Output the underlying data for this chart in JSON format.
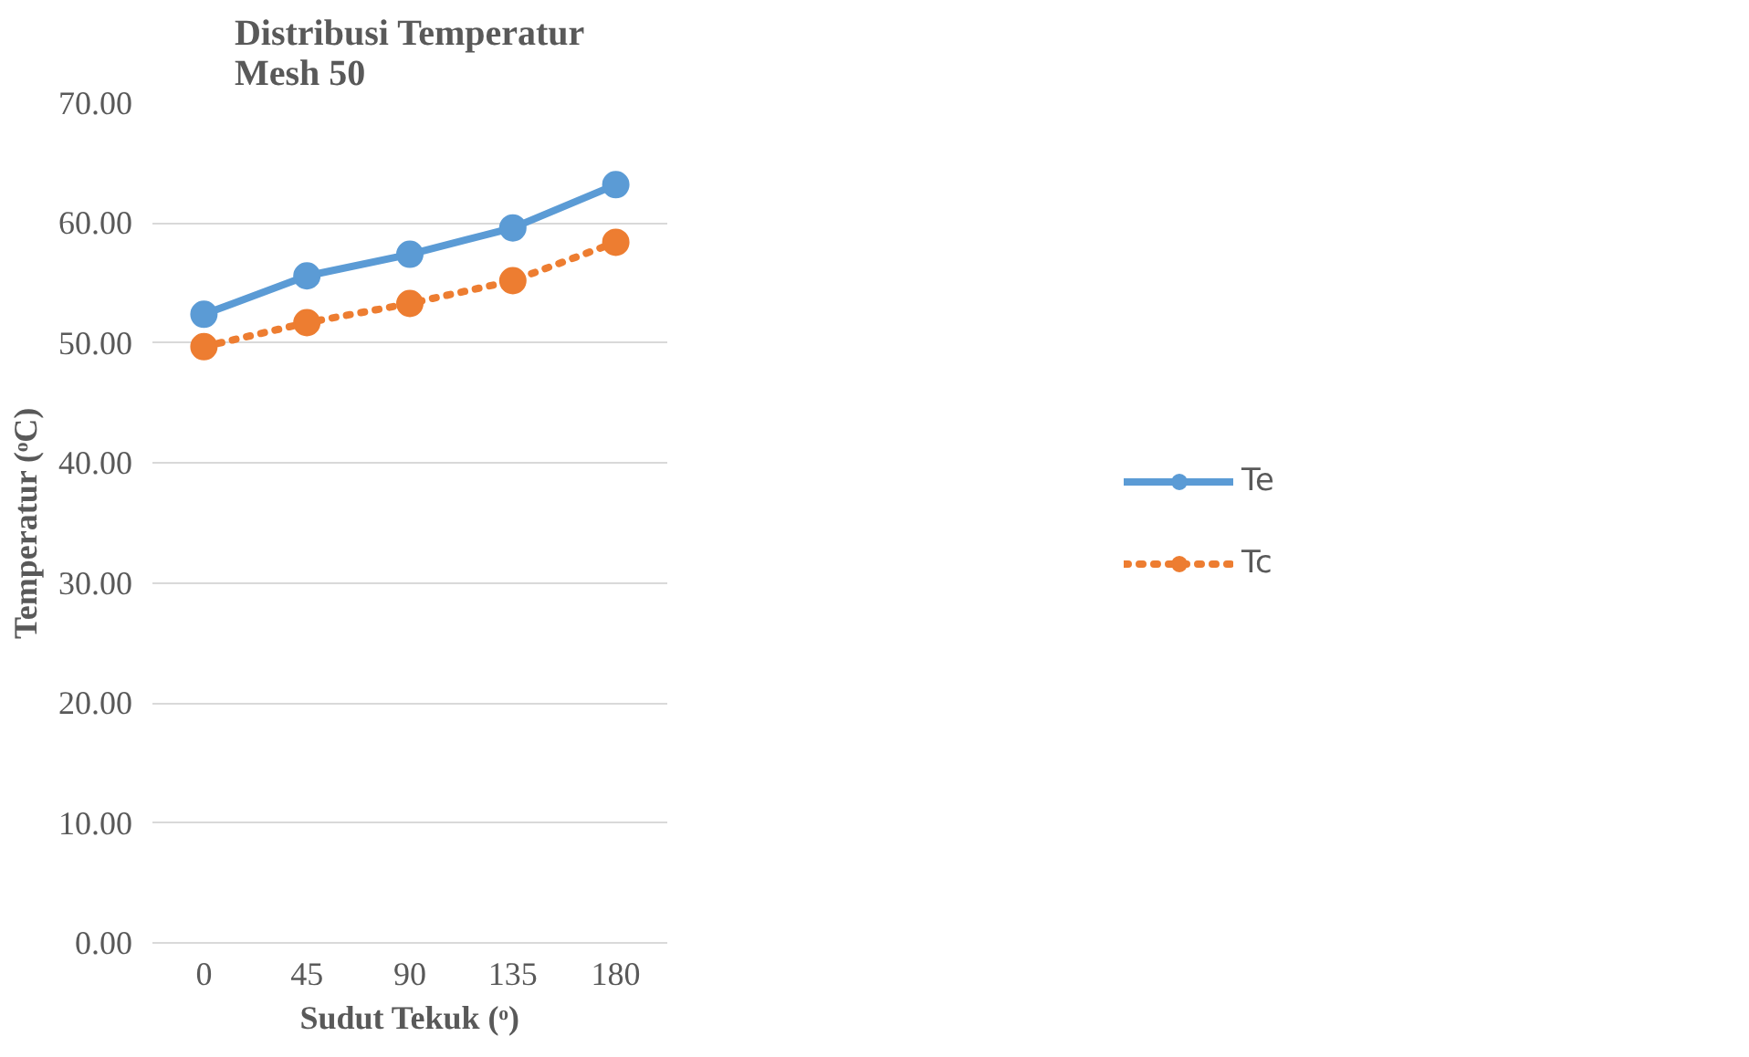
{
  "chart_data": {
    "type": "line",
    "title": "Distribusi Temperatur\nMesh 50",
    "xlabel": "Sudut Tekuk (ᵒ)",
    "ylabel": "Temperatur (ᵒC)",
    "categories": [
      "0",
      "45",
      "90",
      "135",
      "180"
    ],
    "series": [
      {
        "name": "Te",
        "color": "#5b9bd5",
        "values": [
          52.4,
          55.6,
          57.4,
          59.6,
          63.2
        ],
        "line_style": "solid"
      },
      {
        "name": "Tc",
        "color": "#ed7d31",
        "values": [
          49.7,
          51.7,
          53.3,
          55.2,
          58.4
        ],
        "line_style": "dotted"
      }
    ],
    "ylim": [
      0,
      70
    ],
    "yticks": [
      {
        "value": 0,
        "label": "0.00"
      },
      {
        "value": 10,
        "label": "10.00"
      },
      {
        "value": 20,
        "label": "20.00"
      },
      {
        "value": 30,
        "label": "30.00"
      },
      {
        "value": 40,
        "label": "40.00"
      },
      {
        "value": 50,
        "label": "50.00"
      },
      {
        "value": 60,
        "label": "60.00"
      },
      {
        "value": 70,
        "label": "70.00"
      }
    ],
    "grid": "y",
    "legend": "right",
    "marker": "circle"
  }
}
